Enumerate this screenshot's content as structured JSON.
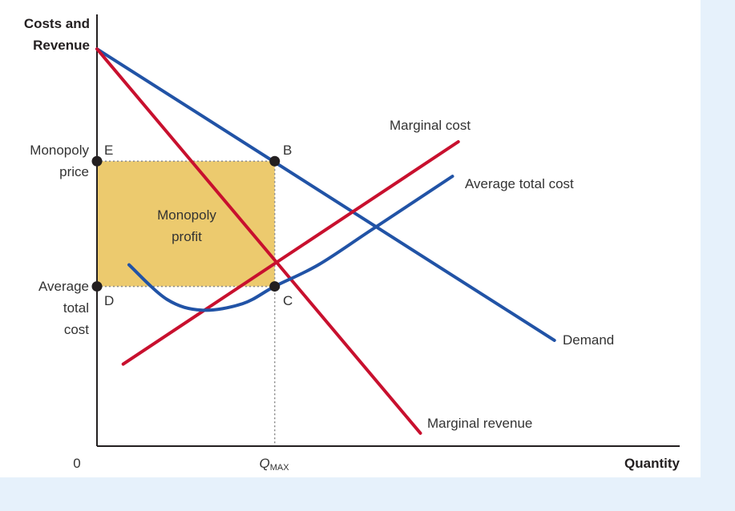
{
  "chart_data": {
    "type": "line",
    "title": "",
    "ylabel": [
      "Costs and",
      "Revenue"
    ],
    "xlabel": "Quantity",
    "origin_label": "0",
    "x_tick_label": {
      "main": "Q",
      "sub": "MAX"
    },
    "y_tick_labels": {
      "monopoly_price": [
        "Monopoly",
        "price"
      ],
      "average_total_cost": [
        "Average",
        "total",
        "cost"
      ]
    },
    "region_label": [
      "Monopoly",
      "profit"
    ],
    "q_max": 0.305,
    "monopoly_price": 0.66,
    "atc_at_qmax": 0.37,
    "series": [
      {
        "name": "Demand",
        "color": "#2153a6",
        "points": [
          [
            0,
            0.92
          ],
          [
            0.785,
            0.245
          ]
        ]
      },
      {
        "name": "Marginal revenue",
        "color": "#c8102e",
        "points": [
          [
            0,
            0.92
          ],
          [
            0.555,
            0.03
          ]
        ]
      },
      {
        "name": "Marginal cost",
        "color": "#c8102e",
        "points": [
          [
            0.045,
            0.19
          ],
          [
            0.62,
            0.705
          ]
        ]
      },
      {
        "name": "Average total cost",
        "color": "#2153a6",
        "points": [
          [
            0.055,
            0.42
          ],
          [
            0.12,
            0.34
          ],
          [
            0.18,
            0.315
          ],
          [
            0.25,
            0.33
          ],
          [
            0.305,
            0.37
          ],
          [
            0.38,
            0.42
          ],
          [
            0.47,
            0.5
          ],
          [
            0.61,
            0.625
          ]
        ]
      }
    ],
    "points": [
      {
        "name": "E",
        "x": 0,
        "y": 0.66
      },
      {
        "name": "B",
        "x": 0.305,
        "y": 0.66
      },
      {
        "name": "D",
        "x": 0,
        "y": 0.37
      },
      {
        "name": "C",
        "x": 0.305,
        "y": 0.37
      }
    ],
    "colors": {
      "profit_fill": "#ecca6e",
      "dotted": "#888888",
      "axis": "#231f20",
      "background": "#e6f1fb"
    },
    "grid": false,
    "legend": "none"
  }
}
